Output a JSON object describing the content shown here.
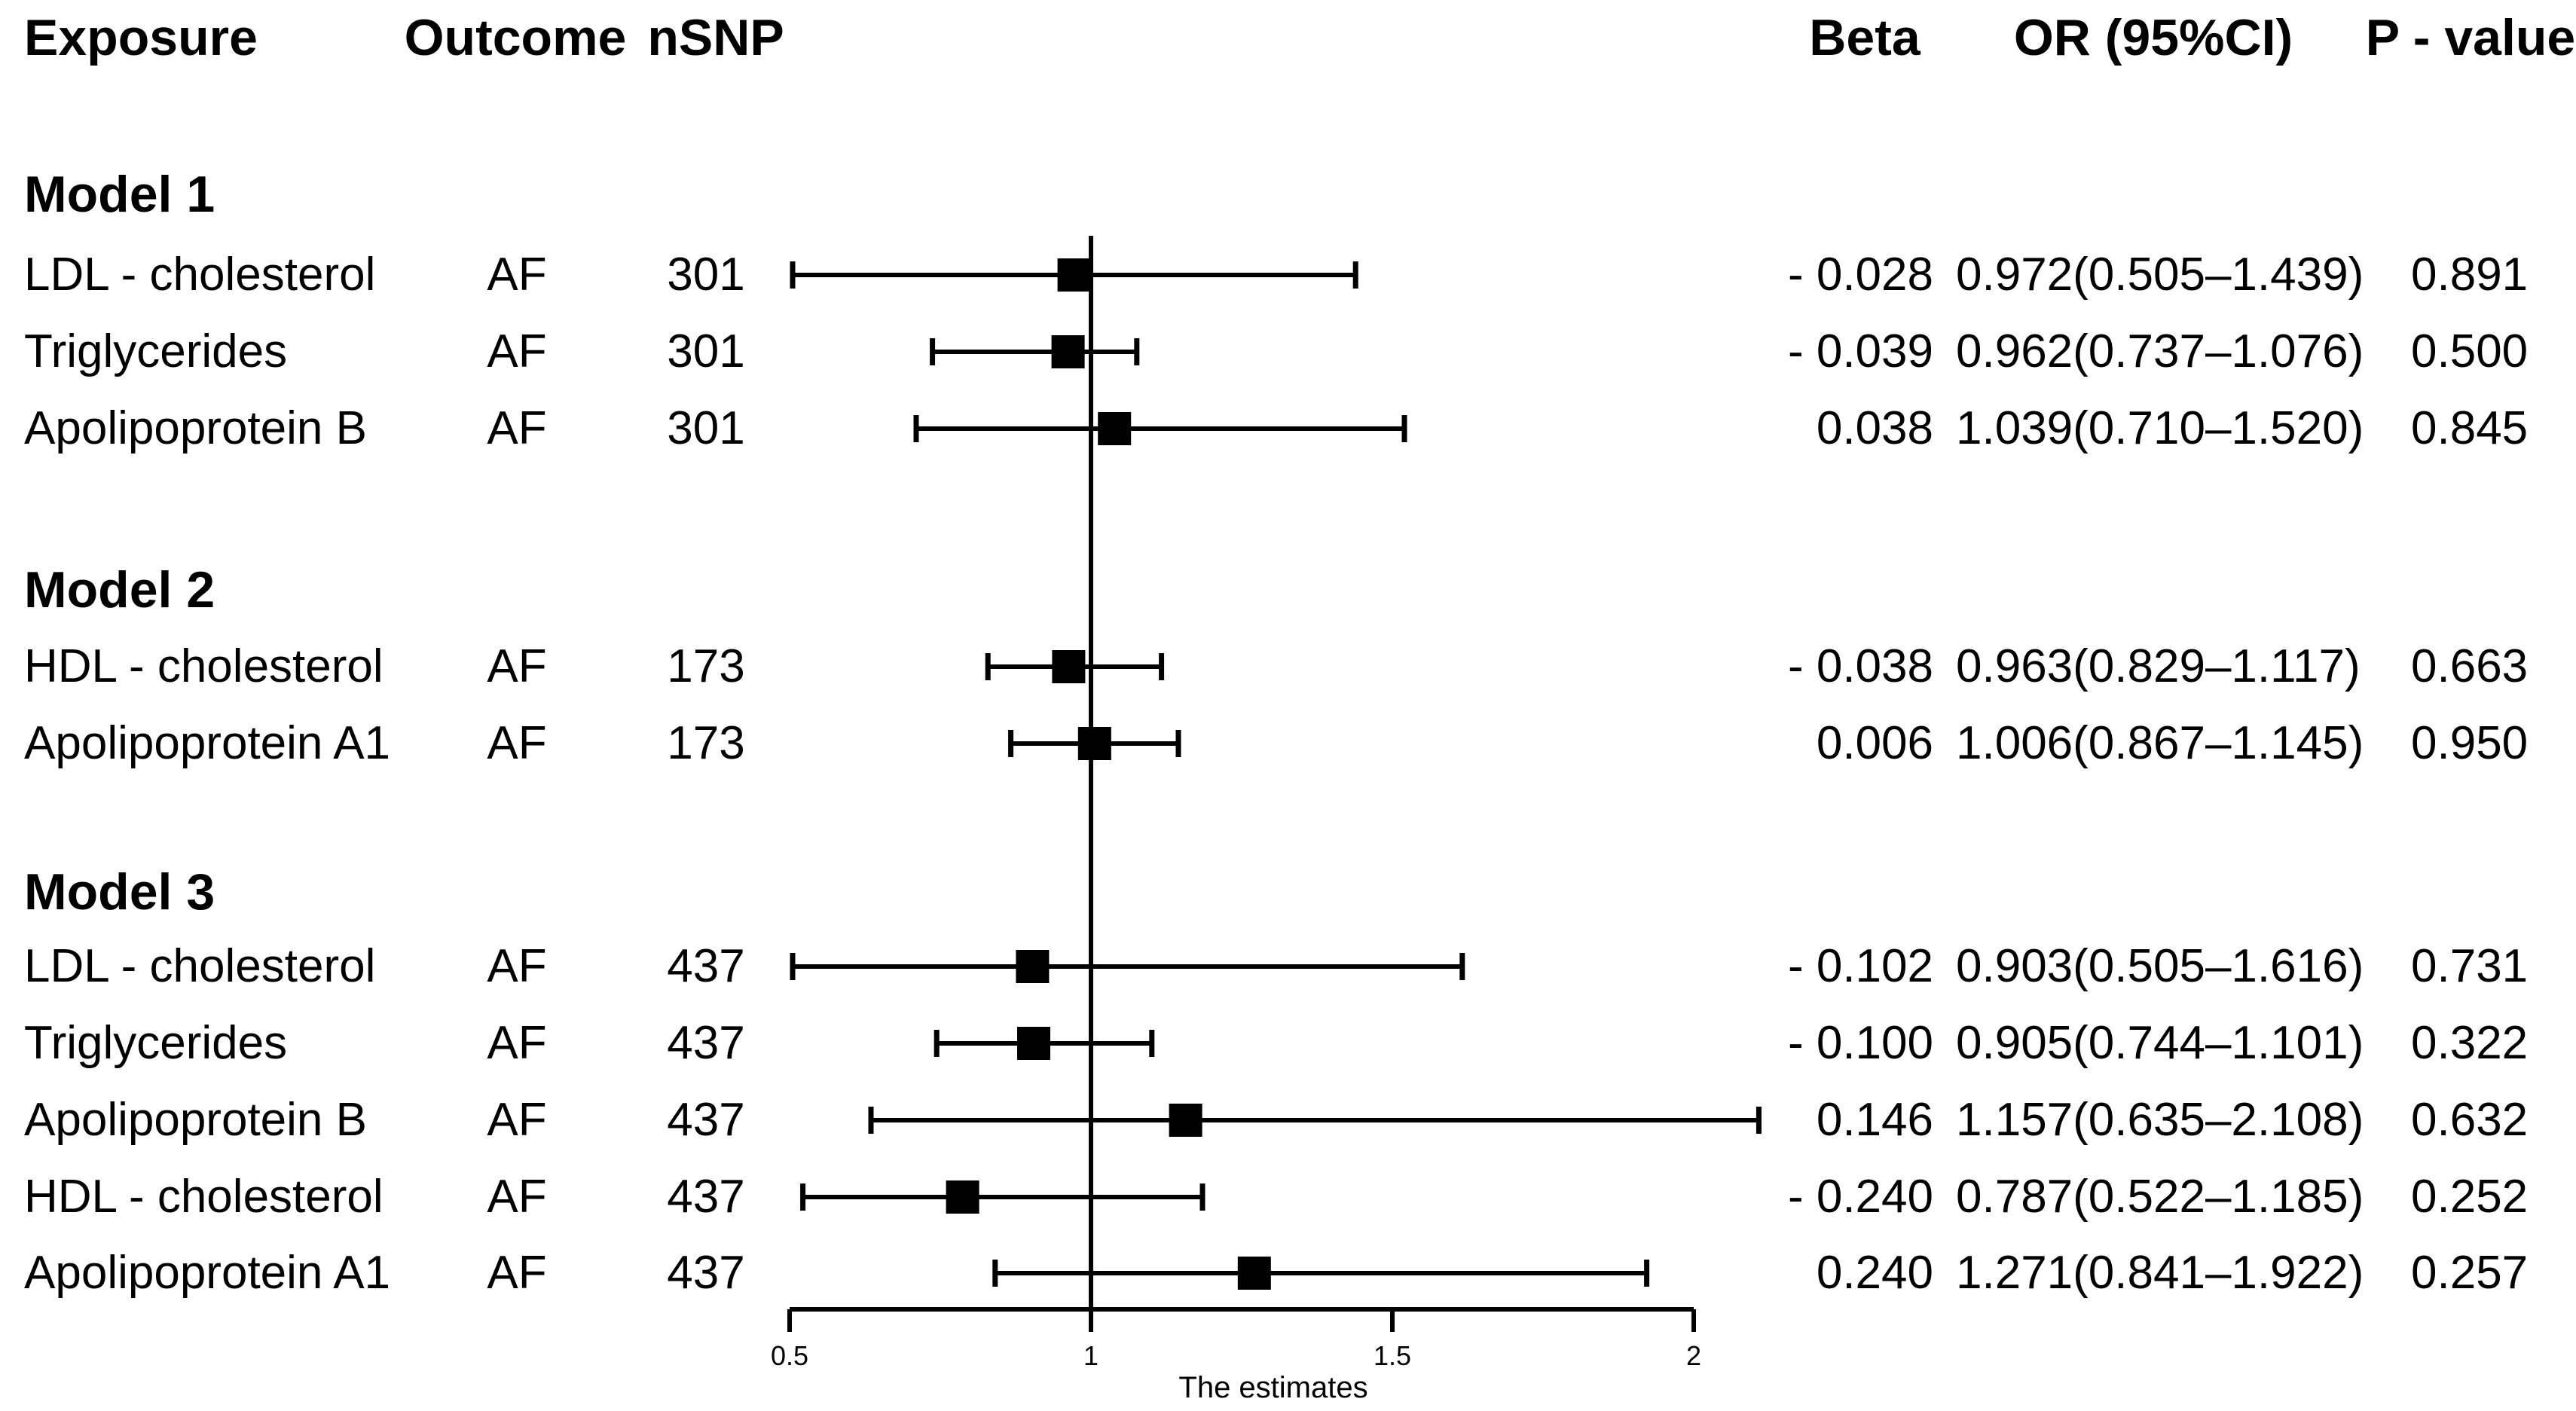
{
  "figure": {
    "background": "#ffffff",
    "text_color": "#000000",
    "marker_color": "#000000"
  },
  "table": {
    "columns": {
      "exposure": "Exposure",
      "outcome": "Outcome",
      "nsnp": "nSNP",
      "beta": "Beta",
      "or_ci": "OR (95%CI)",
      "p": "P - value"
    },
    "sections": [
      {
        "label": "Model 1",
        "rows": [
          {
            "exposure": "LDL - cholesterol",
            "outcome": "AF",
            "nsnp": "301",
            "beta": "- 0.028",
            "or_ci": "0.972(0.505–1.439)",
            "p": "0.891"
          },
          {
            "exposure": "Triglycerides",
            "outcome": "AF",
            "nsnp": "301",
            "beta": "- 0.039",
            "or_ci": "0.962(0.737–1.076)",
            "p": "0.500"
          },
          {
            "exposure": "Apolipoprotein B",
            "outcome": "AF",
            "nsnp": "301",
            "beta": "0.038",
            "or_ci": "1.039(0.710–1.520)",
            "p": "0.845"
          }
        ]
      },
      {
        "label": "Model 2",
        "rows": [
          {
            "exposure": "HDL - cholesterol",
            "outcome": "AF",
            "nsnp": "173",
            "beta": "- 0.038",
            "or_ci": "0.963(0.829–1.117)",
            "p": "0.663"
          },
          {
            "exposure": "Apolipoprotein A1",
            "outcome": "AF",
            "nsnp": "173",
            "beta": "0.006",
            "or_ci": "1.006(0.867–1.145)",
            "p": "0.950"
          }
        ]
      },
      {
        "label": "Model 3",
        "rows": [
          {
            "exposure": "LDL - cholesterol",
            "outcome": "AF",
            "nsnp": "437",
            "beta": "- 0.102",
            "or_ci": "0.903(0.505–1.616)",
            "p": "0.731"
          },
          {
            "exposure": "Triglycerides",
            "outcome": "AF",
            "nsnp": "437",
            "beta": "- 0.100",
            "or_ci": "0.905(0.744–1.101)",
            "p": "0.322"
          },
          {
            "exposure": "Apolipoprotein B",
            "outcome": "AF",
            "nsnp": "437",
            "beta": "0.146",
            "or_ci": "1.157(0.635–2.108)",
            "p": "0.632"
          },
          {
            "exposure": "HDL - cholesterol",
            "outcome": "AF",
            "nsnp": "437",
            "beta": "- 0.240",
            "or_ci": "0.787(0.522–1.185)",
            "p": "0.252"
          },
          {
            "exposure": "Apolipoprotein A1",
            "outcome": "AF",
            "nsnp": "437",
            "beta": "0.240",
            "or_ci": "1.271(0.841–1.922)",
            "p": "0.257"
          }
        ]
      }
    ]
  },
  "chart_data": {
    "type": "forest",
    "xlabel": "The estimates",
    "x_ticks": [
      0.5,
      1,
      1.5,
      2
    ],
    "x_tick_labels": [
      "0.5",
      "1",
      "1.5",
      "2"
    ],
    "xlim": [
      0.5,
      2
    ],
    "reference_line": 1,
    "legend": "none",
    "grid": false,
    "series": [
      {
        "model": "Model 1",
        "exposure": "LDL - cholesterol",
        "outcome": "AF",
        "nsnp": 301,
        "beta": -0.028,
        "or": 0.972,
        "ci_low": 0.505,
        "ci_high": 1.439,
        "p": 0.891
      },
      {
        "model": "Model 1",
        "exposure": "Triglycerides",
        "outcome": "AF",
        "nsnp": 301,
        "beta": -0.039,
        "or": 0.962,
        "ci_low": 0.737,
        "ci_high": 1.076,
        "p": 0.5
      },
      {
        "model": "Model 1",
        "exposure": "Apolipoprotein B",
        "outcome": "AF",
        "nsnp": 301,
        "beta": 0.038,
        "or": 1.039,
        "ci_low": 0.71,
        "ci_high": 1.52,
        "p": 0.845
      },
      {
        "model": "Model 2",
        "exposure": "HDL - cholesterol",
        "outcome": "AF",
        "nsnp": 173,
        "beta": -0.038,
        "or": 0.963,
        "ci_low": 0.829,
        "ci_high": 1.117,
        "p": 0.663
      },
      {
        "model": "Model 2",
        "exposure": "Apolipoprotein A1",
        "outcome": "AF",
        "nsnp": 173,
        "beta": 0.006,
        "or": 1.006,
        "ci_low": 0.867,
        "ci_high": 1.145,
        "p": 0.95
      },
      {
        "model": "Model 3",
        "exposure": "LDL - cholesterol",
        "outcome": "AF",
        "nsnp": 437,
        "beta": -0.102,
        "or": 0.903,
        "ci_low": 0.505,
        "ci_high": 1.616,
        "p": 0.731
      },
      {
        "model": "Model 3",
        "exposure": "Triglycerides",
        "outcome": "AF",
        "nsnp": 437,
        "beta": -0.1,
        "or": 0.905,
        "ci_low": 0.744,
        "ci_high": 1.101,
        "p": 0.322
      },
      {
        "model": "Model 3",
        "exposure": "Apolipoprotein B",
        "outcome": "AF",
        "nsnp": 437,
        "beta": 0.146,
        "or": 1.157,
        "ci_low": 0.635,
        "ci_high": 2.108,
        "p": 0.632
      },
      {
        "model": "Model 3",
        "exposure": "HDL - cholesterol",
        "outcome": "AF",
        "nsnp": 437,
        "beta": -0.24,
        "or": 0.787,
        "ci_low": 0.522,
        "ci_high": 1.185,
        "p": 0.252
      },
      {
        "model": "Model 3",
        "exposure": "Apolipoprotein A1",
        "outcome": "AF",
        "nsnp": 437,
        "beta": 0.24,
        "or": 1.271,
        "ci_low": 0.841,
        "ci_high": 1.922,
        "p": 0.257
      }
    ]
  }
}
